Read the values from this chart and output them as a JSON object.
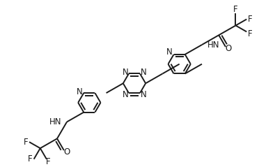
{
  "bg_color": "#ffffff",
  "line_color": "#1a1a1a",
  "line_width": 1.4,
  "font_size": 8.5,
  "figsize": [
    3.72,
    2.39
  ],
  "dpi": 100,
  "xlim": [
    0,
    372
  ],
  "ylim": [
    0,
    239
  ]
}
